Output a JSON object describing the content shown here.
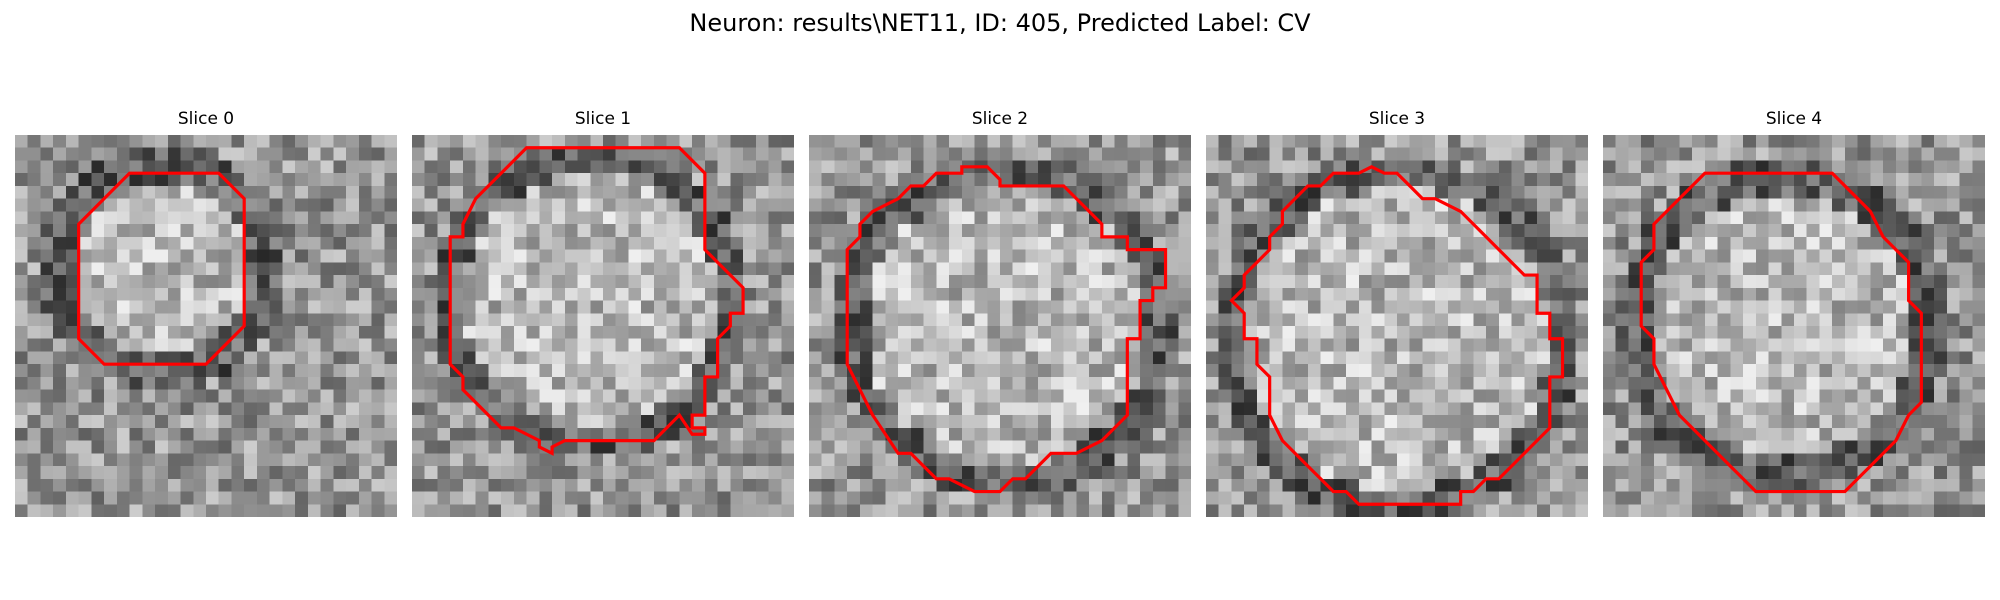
{
  "title": "Neuron: results\\NET11, ID: 405, Predicted Label: CV",
  "contour_color": "#ff0000",
  "colormap": "gray",
  "panels": [
    {
      "label": "Slice 0"
    },
    {
      "label": "Slice 1"
    },
    {
      "label": "Slice 2"
    },
    {
      "label": "Slice 3"
    },
    {
      "label": "Slice 4"
    }
  ]
}
